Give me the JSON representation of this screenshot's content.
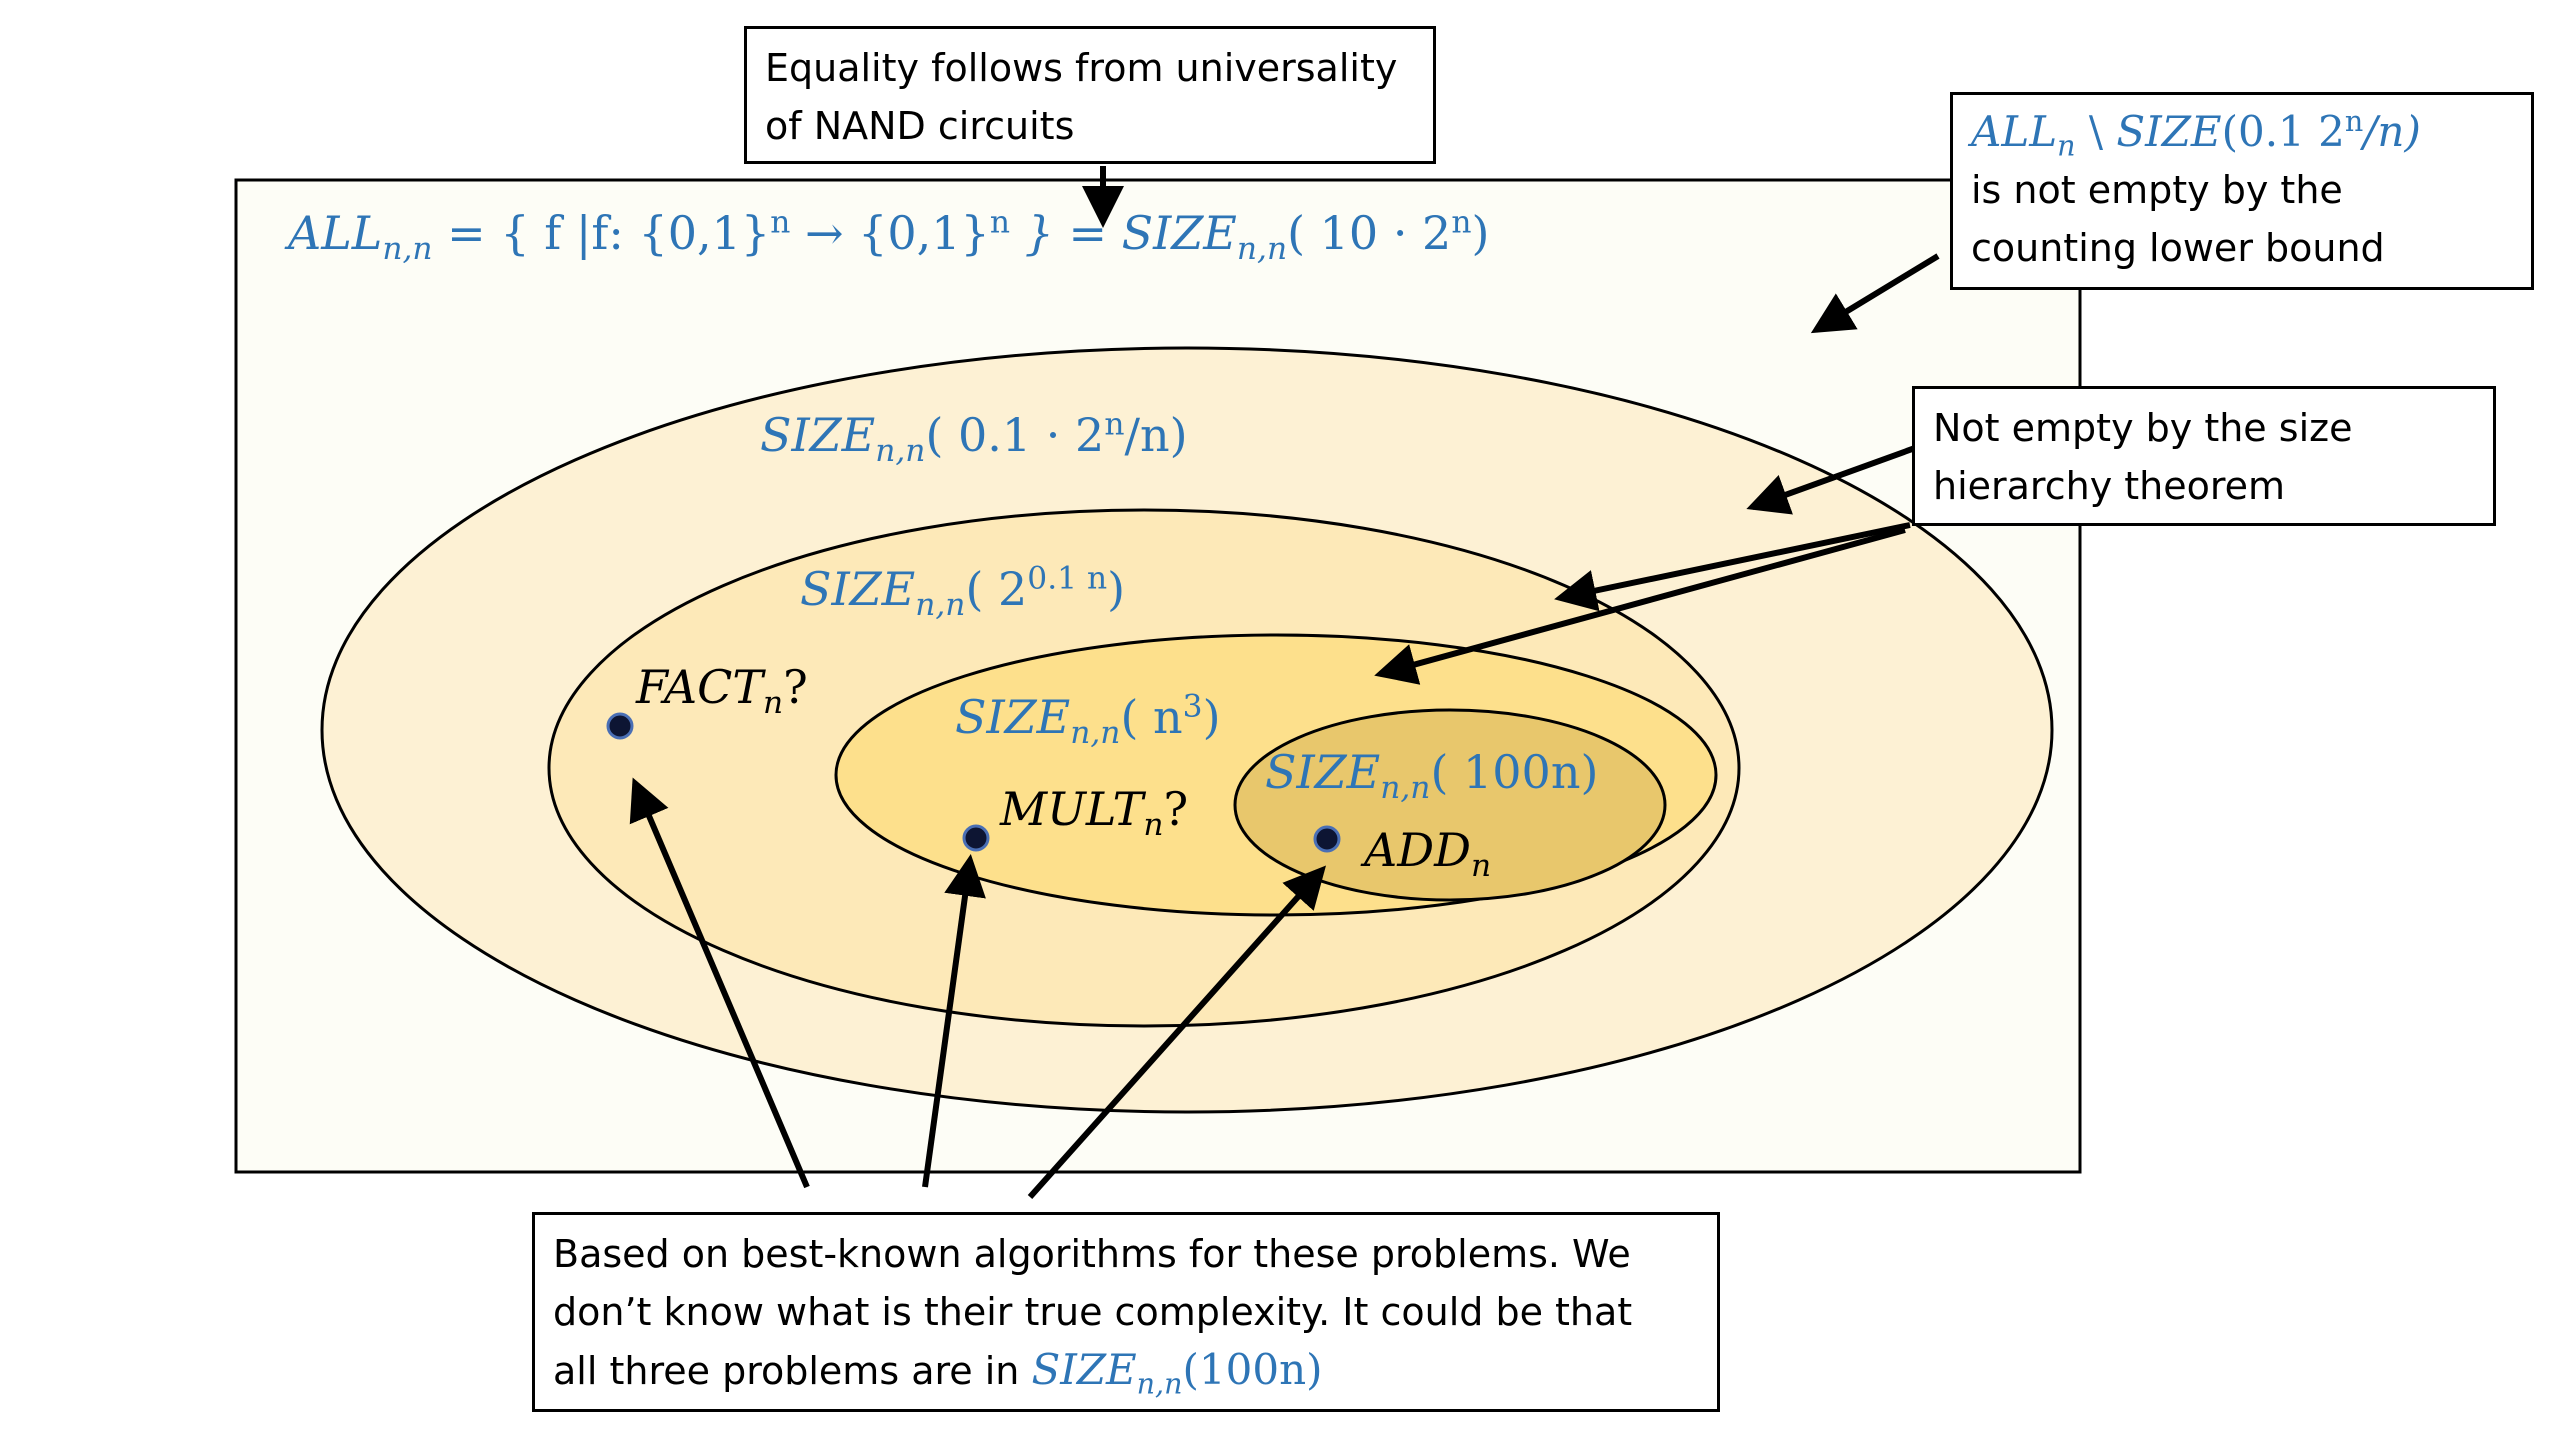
{
  "colors": {
    "math_blue": "#2e75b6",
    "region_all_fill": "#fdfdf6",
    "ellipse1_fill": "#fdf1d4",
    "ellipse2_fill": "#fde9b8",
    "ellipse3_fill": "#fde08c",
    "ellipse4_fill": "#e8c76c",
    "stroke": "#000000"
  },
  "callouts": {
    "equality": {
      "line1": "Equality follows from universality",
      "line2": "of NAND circuits"
    },
    "all_minus_size": {
      "math_set": "ALL",
      "math_set_sub": "n",
      "setminus": " \\ ",
      "math_size": "SIZE",
      "math_arg_open": "(0.1 2",
      "math_arg_sup": "n",
      "math_arg_close": "/n)",
      "line2": "is not empty by the",
      "line3": "counting lower bound"
    },
    "hierarchy": {
      "line1": "Not empty by the size",
      "line2": "hierarchy theorem"
    },
    "best_known": {
      "line1": "Based on best-known algorithms for these problems. We",
      "line2": "don’t know what is their true complexity. It could be that",
      "line3_prefix": "all three problems are in ",
      "math_size": "SIZE",
      "math_sub": "n,n",
      "math_arg": "(100n)"
    }
  },
  "labels": {
    "all_eq": {
      "lhs": "ALL",
      "lhs_sub": "n,n",
      "mid1": " = { f |f: {0,1}",
      "sup1": "n",
      "mid2": " → {0,1}",
      "sup2": "n",
      "mid3": "  } = SIZE",
      "rhs_sub": "n,n",
      "rhs_open": "( 10 · 2",
      "rhs_sup": "n",
      "rhs_close": ")"
    },
    "size_01": {
      "name": "SIZE",
      "sub": "n,n",
      "open": "( 0.1 ·  2",
      "sup": "n",
      "close": "/n)"
    },
    "size_exp": {
      "name": "SIZE",
      "sub": "n,n",
      "open": "( 2",
      "sup": "0.1 n",
      "close": ")"
    },
    "size_n3": {
      "name": "SIZE",
      "sub": "n,n",
      "open": "( n",
      "sup": "3",
      "close": ")"
    },
    "size_100n": {
      "name": "SIZE",
      "sub": "n,n",
      "arg": "( 100n)"
    },
    "fact": {
      "name": "FACT",
      "sub": "n",
      "suffix": "?"
    },
    "mult": {
      "name": "MULT",
      "sub": "n",
      "suffix": "?"
    },
    "add": {
      "name": "ADD",
      "sub": "n"
    }
  }
}
